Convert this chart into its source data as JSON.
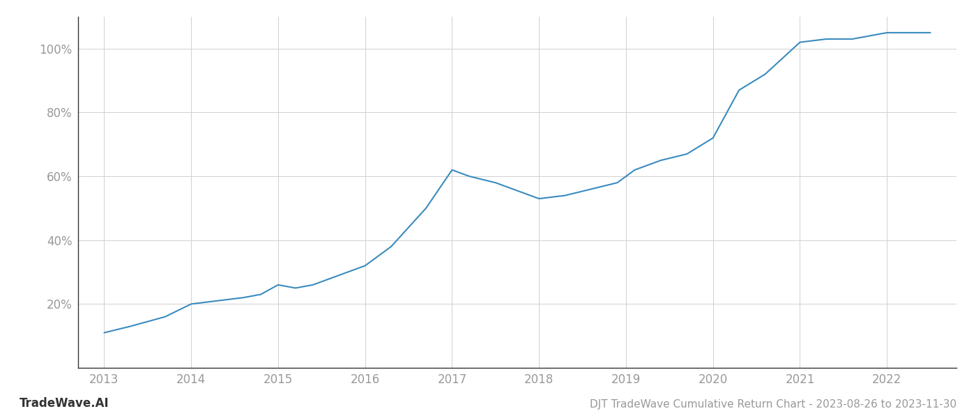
{
  "x_years": [
    2013.0,
    2013.3,
    2013.7,
    2014.0,
    2014.3,
    2014.6,
    2014.8,
    2015.0,
    2015.2,
    2015.4,
    2015.6,
    2016.0,
    2016.3,
    2016.5,
    2016.7,
    2017.0,
    2017.2,
    2017.5,
    2017.8,
    2018.0,
    2018.3,
    2018.6,
    2018.9,
    2019.1,
    2019.4,
    2019.7,
    2020.0,
    2020.3,
    2020.6,
    2021.0,
    2021.3,
    2021.6,
    2022.0,
    2022.5
  ],
  "y_values": [
    11,
    13,
    16,
    20,
    21,
    22,
    23,
    26,
    25,
    26,
    28,
    32,
    38,
    44,
    50,
    62,
    60,
    58,
    55,
    53,
    54,
    56,
    58,
    62,
    65,
    67,
    72,
    87,
    92,
    102,
    103,
    103,
    105,
    105
  ],
  "line_color": "#3a8bbf",
  "line_width": 1.5,
  "grid_color": "#d0d0d0",
  "background_color": "#ffffff",
  "title_text": "DJT TradeWave Cumulative Return Chart - 2023-08-26 to 2023-11-30",
  "watermark_text": "TradeWave.AI",
  "x_ticks": [
    2013,
    2014,
    2015,
    2016,
    2017,
    2018,
    2019,
    2020,
    2021,
    2022
  ],
  "y_ticks": [
    20,
    40,
    60,
    80,
    100
  ],
  "y_min": 0,
  "y_max": 110,
  "x_min": 2012.7,
  "x_max": 2022.8,
  "tick_label_color": "#999999",
  "spine_color": "#333333",
  "label_fontsize": 12,
  "footer_fontsize": 11,
  "watermark_fontsize": 12,
  "watermark_color": "#333333",
  "footer_color": "#999999"
}
